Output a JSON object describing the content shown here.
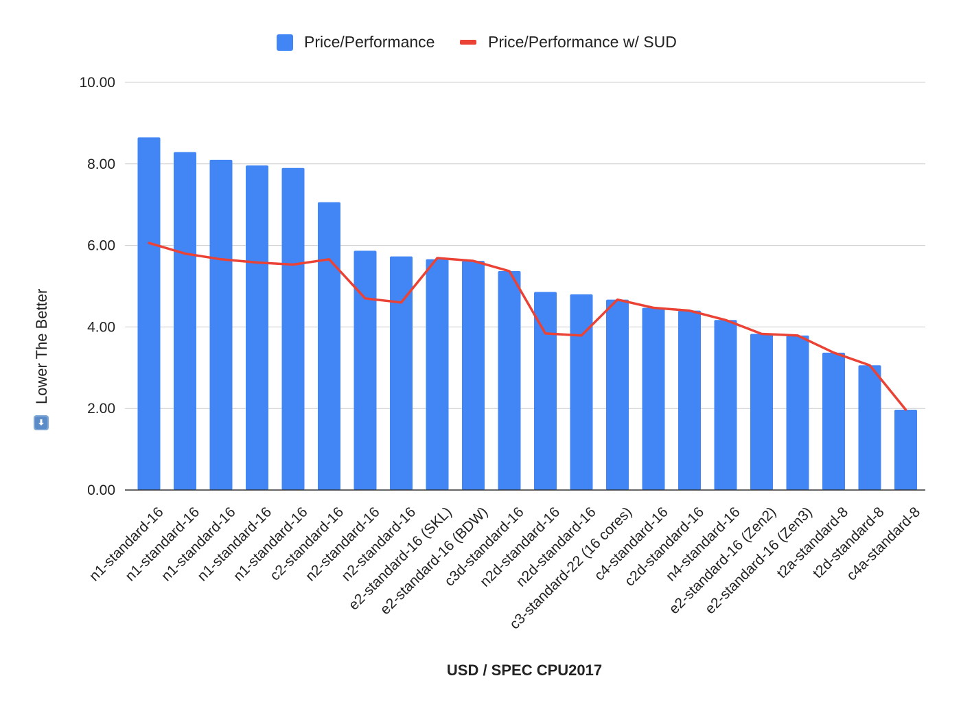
{
  "chart_data": {
    "type": "bar",
    "title": "",
    "xlabel": "USD / SPEC CPU2017",
    "ylabel": "Lower The Better",
    "ylabel_icon": "down-arrow-icon",
    "ylim": [
      0,
      10
    ],
    "yticks": [
      "0.00",
      "2.00",
      "4.00",
      "6.00",
      "8.00",
      "10.00"
    ],
    "grid": true,
    "legend_position": "top-center",
    "colors": {
      "bars": "#4285f4",
      "line": "#ea4335",
      "grid": "#cccccc",
      "axis": "#333333"
    },
    "categories": [
      "n1-standard-16",
      "n1-standard-16",
      "n1-standard-16",
      "n1-standard-16",
      "n1-standard-16",
      "c2-standard-16",
      "n2-standard-16",
      "n2-standard-16",
      "e2-standard-16 (SKL)",
      "e2-standard-16 (BDW)",
      "c3d-standard-16",
      "n2d-standard-16",
      "n2d-standard-16",
      "c3-standard-22 (16 cores)",
      "c4-standard-16",
      "c2d-standard-16",
      "n4-standard-16",
      "e2-standard-16 (Zen2)",
      "e2-standard-16 (Zen3)",
      "t2a-standard-8",
      "t2d-standard-8",
      "c4a-standard-8"
    ],
    "series": [
      {
        "name": "Price/Performance",
        "type": "bar",
        "values": [
          8.65,
          8.29,
          8.1,
          7.96,
          7.9,
          7.06,
          5.87,
          5.73,
          5.66,
          5.62,
          5.37,
          4.86,
          4.8,
          4.67,
          4.47,
          4.4,
          4.17,
          3.83,
          3.79,
          3.37,
          3.06,
          1.97
        ]
      },
      {
        "name": "Price/Performance w/ SUD",
        "type": "line",
        "values": [
          6.06,
          5.8,
          5.66,
          5.58,
          5.53,
          5.66,
          4.7,
          4.6,
          5.69,
          5.62,
          5.37,
          3.84,
          3.79,
          4.67,
          4.47,
          4.4,
          4.17,
          3.83,
          3.79,
          3.37,
          3.06,
          1.97
        ]
      }
    ]
  }
}
